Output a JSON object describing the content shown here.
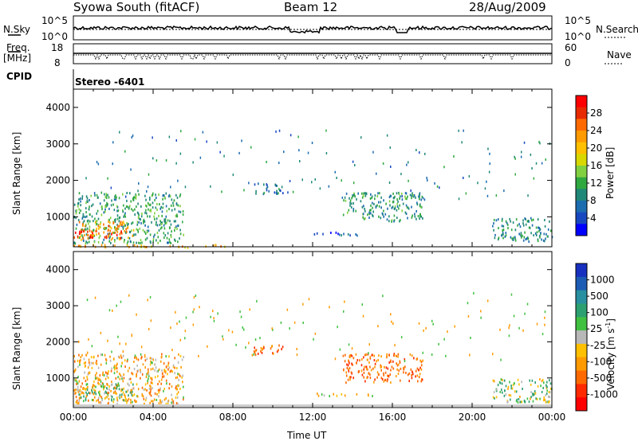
{
  "header": {
    "station": "Syowa South (fitACF)",
    "beam": "Beam 12",
    "date": "28/Aug/2009"
  },
  "top_panels": {
    "nsky_label": "N.Sky",
    "nsearch_label": "N.Search",
    "freq_label_1": "Freq.",
    "freq_label_2": "[MHz]",
    "nave_label": "Nave",
    "cpid_label": "CPID",
    "cpid_value": "Stereo -6401",
    "nsky_ticks": [
      "10^5",
      "10^0"
    ],
    "nsearch_ticks": [
      "10^5",
      "10^0"
    ],
    "freq_ticks": [
      "18",
      "8"
    ],
    "nave_ticks": [
      "60",
      "0"
    ]
  },
  "power_colorbar": {
    "label": "Power [dB]",
    "ticks": [
      "28",
      "24",
      "20",
      "16",
      "12",
      "8",
      "4"
    ],
    "colors": [
      "#ff0000",
      "#e82a00",
      "#ff6a00",
      "#ff9a00",
      "#ffc000",
      "#d8d800",
      "#80d040",
      "#30a840",
      "#208878",
      "#1c6cb0",
      "#1848c0",
      "#0000ff"
    ]
  },
  "velocity_colorbar": {
    "label": "Velocity [m s",
    "label_sup": "-1",
    "label_end": "]",
    "ticks": [
      "1000",
      "500",
      "100",
      "25",
      "-25",
      "-100",
      "-500",
      "-1000"
    ],
    "colors": [
      "#1830c0",
      "#1c5cb4",
      "#2890a0",
      "#2ca070",
      "#40c040",
      "#b8b8b8",
      "#ffc000",
      "#ff9a00",
      "#ff6a00",
      "#ff2a00",
      "#ff0000"
    ]
  },
  "chart_data": [
    {
      "type": "heatmap",
      "title": "",
      "xlabel": "",
      "ylabel": "Slant Range [km]",
      "x_ticks": [],
      "y_ticks": [
        "1000",
        "2000",
        "3000",
        "4000"
      ],
      "ylim": [
        180,
        4500
      ],
      "xlim": [
        "00:00",
        "24:00"
      ],
      "variable": "Power [dB]",
      "clusters": [
        {
          "t0": 0.0,
          "t1": 5.5,
          "r0": 300,
          "r1": 1700,
          "v": 10
        },
        {
          "t0": 0.2,
          "t1": 3.0,
          "r0": 400,
          "r1": 900,
          "v": 22
        },
        {
          "t0": 0.0,
          "t1": 2.5,
          "r0": 450,
          "r1": 650,
          "v": 27
        },
        {
          "t0": 9.0,
          "t1": 10.5,
          "r0": 1650,
          "r1": 1950,
          "v": 6
        },
        {
          "t0": 13.5,
          "t1": 17.5,
          "r0": 900,
          "r1": 1700,
          "v": 9
        },
        {
          "t0": 12.0,
          "t1": 15.0,
          "r0": 520,
          "r1": 600,
          "v": 5
        },
        {
          "t0": 21.0,
          "t1": 24.0,
          "r0": 350,
          "r1": 1000,
          "v": 8
        },
        {
          "t0": 0.0,
          "t1": 8.0,
          "r0": 180,
          "r1": 260,
          "v": 20
        }
      ]
    },
    {
      "type": "heatmap",
      "title": "",
      "xlabel": "Time UT",
      "ylabel": "Slant Range [km]",
      "x_ticks": [
        "00:00",
        "04:00",
        "08:00",
        "12:00",
        "16:00",
        "20:00",
        "00:00"
      ],
      "y_ticks": [
        "1000",
        "2000",
        "3000",
        "4000"
      ],
      "ylim": [
        180,
        4500
      ],
      "xlim": [
        "00:00",
        "24:00"
      ],
      "variable": "Velocity [m s-1]",
      "clusters": [
        {
          "t0": 0.0,
          "t1": 5.5,
          "r0": 300,
          "r1": 1700,
          "v": -100
        },
        {
          "t0": 0.2,
          "t1": 3.0,
          "r0": 400,
          "r1": 900,
          "v": 100
        },
        {
          "t0": 9.0,
          "t1": 10.5,
          "r0": 1650,
          "r1": 1950,
          "v": -300
        },
        {
          "t0": 13.5,
          "t1": 17.5,
          "r0": 900,
          "r1": 1700,
          "v": -300
        },
        {
          "t0": 12.0,
          "t1": 15.0,
          "r0": 520,
          "r1": 600,
          "v": -50
        },
        {
          "t0": 21.0,
          "t1": 24.0,
          "r0": 350,
          "r1": 1000,
          "v": 100
        }
      ]
    }
  ]
}
